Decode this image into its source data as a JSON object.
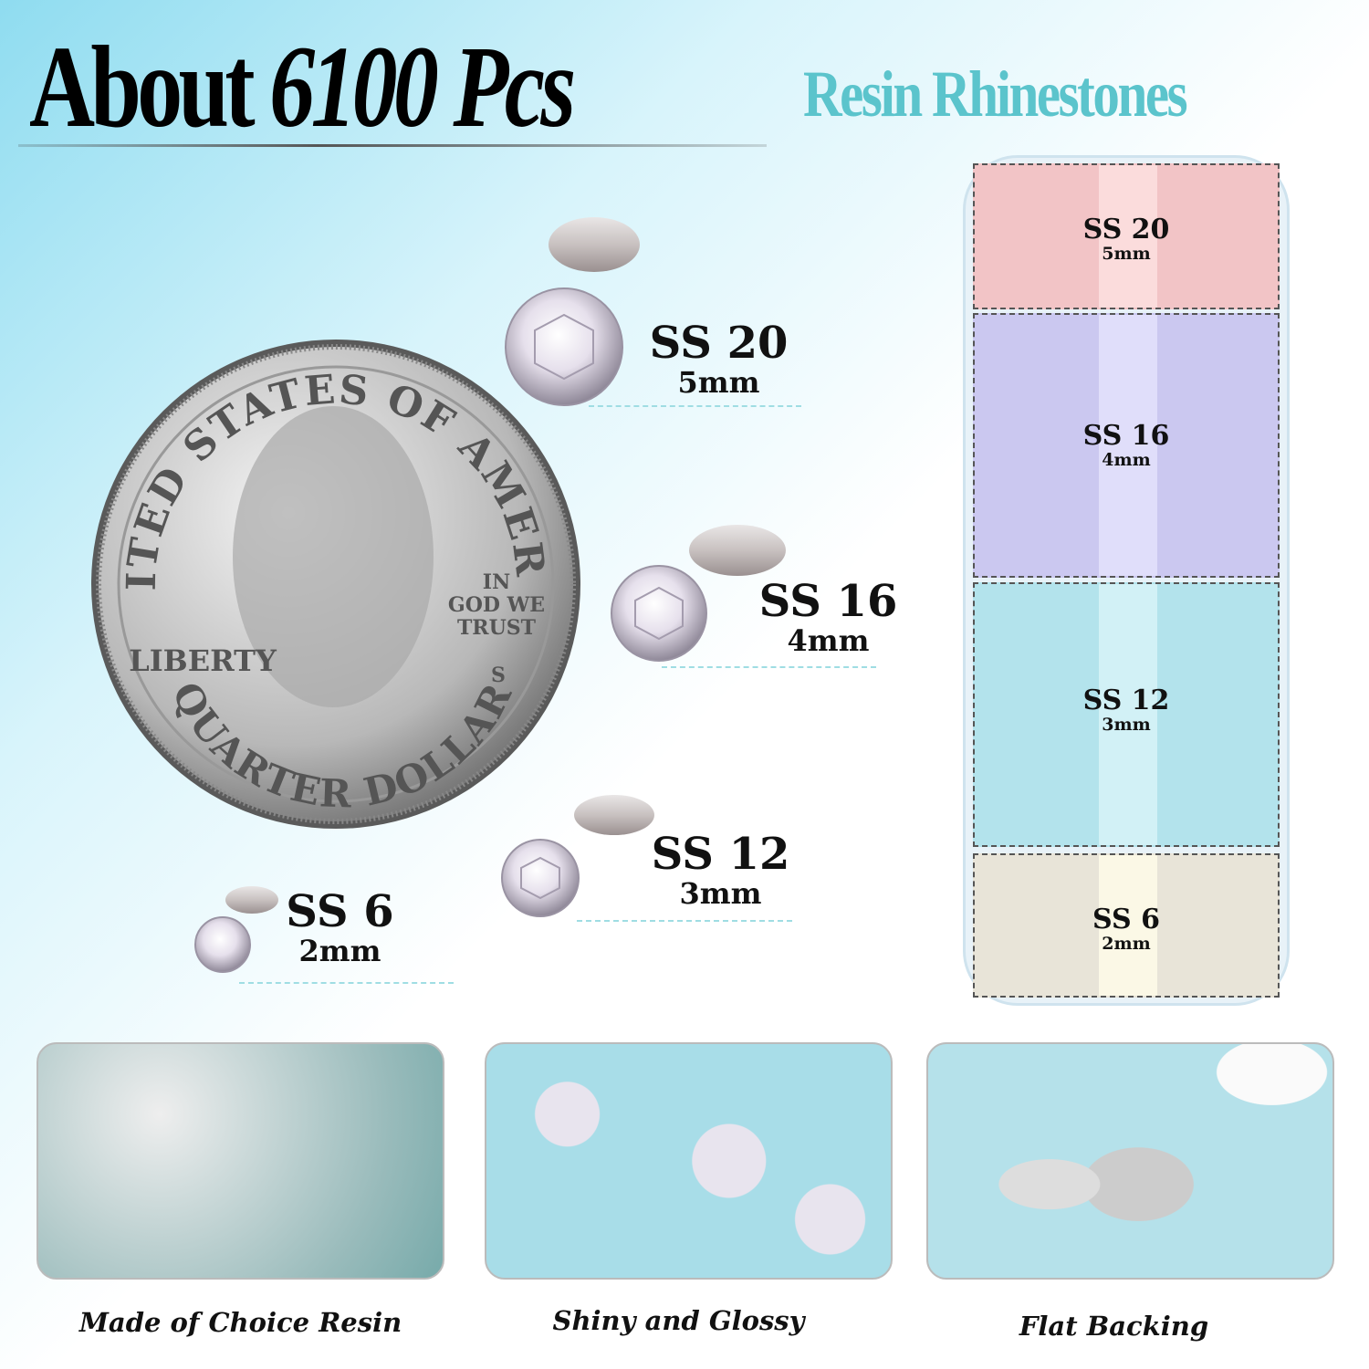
{
  "header": {
    "title_prefix": "About",
    "title_count": "6100 Pcs",
    "subtitle": "Resin Rhinestones"
  },
  "colors": {
    "accent": "#5bc4cc",
    "pink": "#f4c7c9",
    "lavender": "#cfcdf2",
    "blue": "#b8e6ee",
    "cream": "#ece8dc"
  },
  "coin": {
    "top_text": "UNITED STATES OF AMERICA",
    "motto": [
      "IN",
      "GOD WE",
      "TRUST"
    ],
    "liberty": "LIBERTY",
    "bottom_text": "QUARTER DOLLAR",
    "mint_mark": "S"
  },
  "sizes": [
    {
      "ss": "SS 20",
      "mm": "5mm"
    },
    {
      "ss": "SS 16",
      "mm": "4mm"
    },
    {
      "ss": "SS 12",
      "mm": "3mm"
    },
    {
      "ss": "SS 6",
      "mm": "2mm"
    }
  ],
  "box": [
    {
      "ss": "SS 20",
      "mm": "5mm"
    },
    {
      "ss": "SS 16",
      "mm": "4mm"
    },
    {
      "ss": "SS 12",
      "mm": "3mm"
    },
    {
      "ss": "SS 6",
      "mm": "2mm"
    }
  ],
  "features": [
    {
      "caption": "Made of Choice Resin"
    },
    {
      "caption": "Shiny and Glossy"
    },
    {
      "caption": "Flat Backing"
    }
  ]
}
